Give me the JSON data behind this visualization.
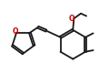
{
  "bg_color": "#ffffff",
  "bond_color": "#1a1a1a",
  "O_color": "#cc0000",
  "line_width": 1.3,
  "figsize": [
    1.2,
    0.92
  ],
  "dpi": 100,
  "xlim": [
    0.0,
    1.0
  ],
  "ylim": [
    0.08,
    0.92
  ]
}
